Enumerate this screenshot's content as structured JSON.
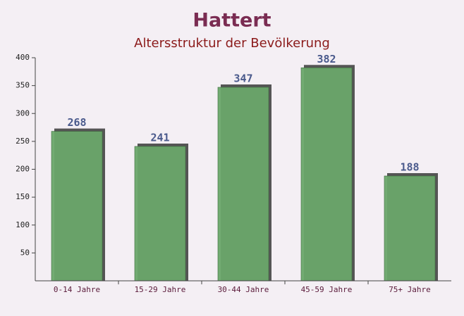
{
  "chart_data": {
    "type": "bar",
    "title": "Hattert",
    "subtitle": "Altersstruktur der Bevölkerung",
    "categories": [
      "0-14 Jahre",
      "15-29 Jahre",
      "30-44 Jahre",
      "45-59 Jahre",
      "75+ Jahre"
    ],
    "values": [
      268,
      241,
      347,
      382,
      188
    ],
    "color": "#6aa66a",
    "ylim": [
      0,
      400
    ],
    "yticks": [
      50,
      100,
      150,
      200,
      250,
      300,
      350,
      400
    ],
    "grid": false
  }
}
